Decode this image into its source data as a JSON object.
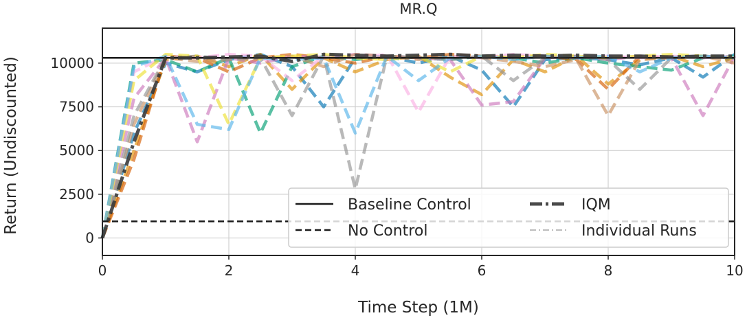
{
  "chart_data": {
    "type": "line",
    "title": "MR.Q",
    "xlabel": "Time Step (1M)",
    "ylabel": "Return (Undiscounted)",
    "xlim": [
      0,
      10
    ],
    "ylim": [
      -1000,
      12000
    ],
    "xticks": [
      0,
      2,
      4,
      6,
      8,
      10
    ],
    "yticks": [
      0,
      2500,
      5000,
      7500,
      10000
    ],
    "xtick_labels": [
      "0",
      "2",
      "4",
      "6",
      "8",
      "10"
    ],
    "ytick_labels": [
      "0",
      "2500",
      "5000",
      "7500",
      "10000"
    ],
    "grid": true,
    "legend_position": "lower-right",
    "legend": [
      {
        "label": "Baseline Control",
        "style": "solid",
        "color": "#1a1a1a"
      },
      {
        "label": "IQM",
        "style": "dashdot",
        "color": "#4a4a4a"
      },
      {
        "label": "No Control",
        "style": "dashed",
        "color": "#1a1a1a"
      },
      {
        "label": "Individual Runs",
        "style": "dashed",
        "color": "#bdbdbd"
      }
    ],
    "x": [
      0,
      0.5,
      1,
      1.5,
      2,
      2.5,
      3,
      3.5,
      4,
      4.5,
      5,
      5.5,
      6,
      6.5,
      7,
      7.5,
      8,
      8.5,
      9,
      9.5,
      10
    ],
    "baseline_control": 10300,
    "no_control": 950,
    "iqm": [
      0,
      5500,
      10300,
      10300,
      10350,
      10400,
      10100,
      10500,
      10450,
      10400,
      10450,
      10500,
      10400,
      10450,
      10400,
      10450,
      10400,
      10400,
      10350,
      10400,
      10400
    ],
    "individual_runs": [
      {
        "color": "#0173b2",
        "values": [
          0,
          6000,
          10000,
          9500,
          10200,
          10500,
          9800,
          7500,
          10300,
          10400,
          10000,
          10400,
          9600,
          7500,
          10200,
          10300,
          10200,
          9900,
          10300,
          9200,
          10500
        ]
      },
      {
        "color": "#de8f05",
        "values": [
          0,
          5000,
          10200,
          10400,
          9800,
          10500,
          8500,
          10300,
          9500,
          10200,
          10400,
          9200,
          8200,
          10200,
          9500,
          10400,
          8800,
          10200,
          10400,
          9800,
          10300
        ]
      },
      {
        "color": "#029e73",
        "values": [
          0,
          10000,
          10200,
          9500,
          10300,
          6000,
          9800,
          10400,
          10200,
          10400,
          10300,
          10200,
          10400,
          10300,
          10000,
          10300,
          10000,
          9800,
          9600,
          10300,
          10400
        ]
      },
      {
        "color": "#d55e00",
        "values": [
          0,
          4500,
          10400,
          10300,
          9500,
          10300,
          10500,
          10300,
          10000,
          10400,
          10300,
          10500,
          10400,
          10300,
          10400,
          10200,
          8500,
          10400,
          10300,
          10400,
          10300
        ]
      },
      {
        "color": "#cc78bc",
        "values": [
          0,
          8000,
          10300,
          5500,
          10300,
          10000,
          10400,
          10300,
          10500,
          10400,
          10300,
          10200,
          7600,
          7800,
          10300,
          10400,
          10200,
          10400,
          10300,
          7000,
          10400
        ]
      },
      {
        "color": "#ca9161",
        "values": [
          0,
          6500,
          10300,
          10100,
          10200,
          10300,
          10400,
          9800,
          10500,
          10400,
          10200,
          10400,
          10300,
          10100,
          9800,
          10200,
          7000,
          10200,
          10300,
          10400,
          10000
        ]
      },
      {
        "color": "#fbafe4",
        "values": [
          0,
          9500,
          10400,
          10300,
          10500,
          10400,
          9000,
          10400,
          10300,
          10500,
          7200,
          10400,
          10300,
          10500,
          10400,
          10300,
          10400,
          10300,
          10400,
          10300,
          10400
        ]
      },
      {
        "color": "#949494",
        "values": [
          0,
          7000,
          10300,
          10400,
          10200,
          10300,
          7000,
          10400,
          2800,
          10400,
          10300,
          10200,
          10400,
          9000,
          10300,
          10400,
          10200,
          8500,
          10300,
          10400,
          10300
        ]
      },
      {
        "color": "#ece133",
        "values": [
          0,
          9000,
          10500,
          10400,
          6500,
          10300,
          10400,
          10500,
          10300,
          10200,
          10400,
          9500,
          10400,
          10300,
          10500,
          10400,
          10300,
          10400,
          10500,
          10400,
          10300
        ]
      },
      {
        "color": "#56b4e9",
        "values": [
          0,
          9800,
          10400,
          6500,
          6200,
          10300,
          10200,
          10300,
          6000,
          10400,
          9000,
          10300,
          10400,
          10200,
          10400,
          10300,
          10400,
          9500,
          10300,
          10400,
          10300
        ]
      }
    ]
  }
}
